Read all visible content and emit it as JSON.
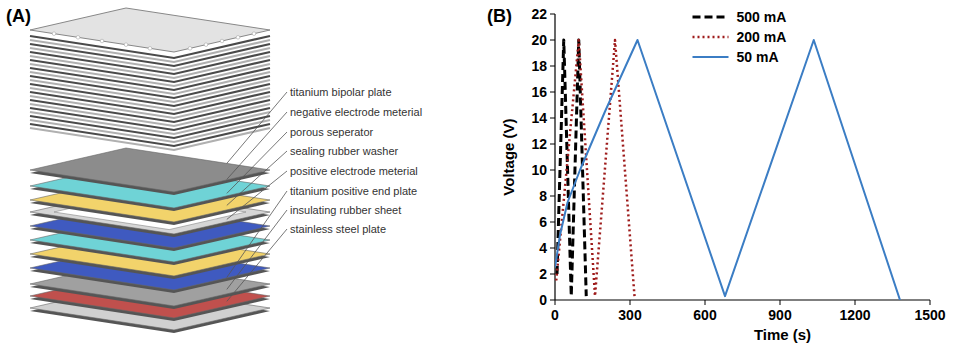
{
  "panel_labels": [
    "(A)",
    "(B)"
  ],
  "diagram": {
    "labels": [
      "titanium bipolar plate",
      "negative electrode meterial",
      "porous seperator",
      "sealing rubber washer",
      "positive electrode meterial",
      "titanium positive end plate",
      "insulating rubber sheet",
      "stainless steel plate"
    ]
  },
  "chart_data": {
    "type": "line",
    "x_label": "Time (s)",
    "y_label": "Voltage (V)",
    "xlim": [
      0,
      1500
    ],
    "xticks": [
      0,
      300,
      600,
      900,
      1200,
      1500
    ],
    "ylim": [
      0,
      22
    ],
    "yticks": [
      0,
      2,
      4,
      6,
      8,
      10,
      12,
      14,
      16,
      18,
      20,
      22
    ],
    "grid": false,
    "legend": "upper center",
    "series": [
      {
        "name": "500 mA",
        "color": "#000000",
        "line_style": "dashed",
        "x": [
          8,
          35,
          65,
          95,
          125
        ],
        "values": [
          2,
          20,
          0.3,
          20,
          0.3
        ]
      },
      {
        "name": "200 mA",
        "color": "#9e1b1b",
        "line_style": "dotted",
        "x": [
          5,
          95,
          160,
          240,
          318
        ],
        "values": [
          1.5,
          20,
          0.3,
          20,
          0.3
        ]
      },
      {
        "name": "50 mA",
        "color": "#3b7dc4",
        "line_style": "solid",
        "x": [
          0,
          20,
          50,
          100,
          200,
          330,
          680,
          1035,
          1380
        ],
        "values": [
          2.5,
          5,
          7.5,
          10,
          14.5,
          20,
          0.3,
          20,
          0
        ]
      }
    ]
  }
}
